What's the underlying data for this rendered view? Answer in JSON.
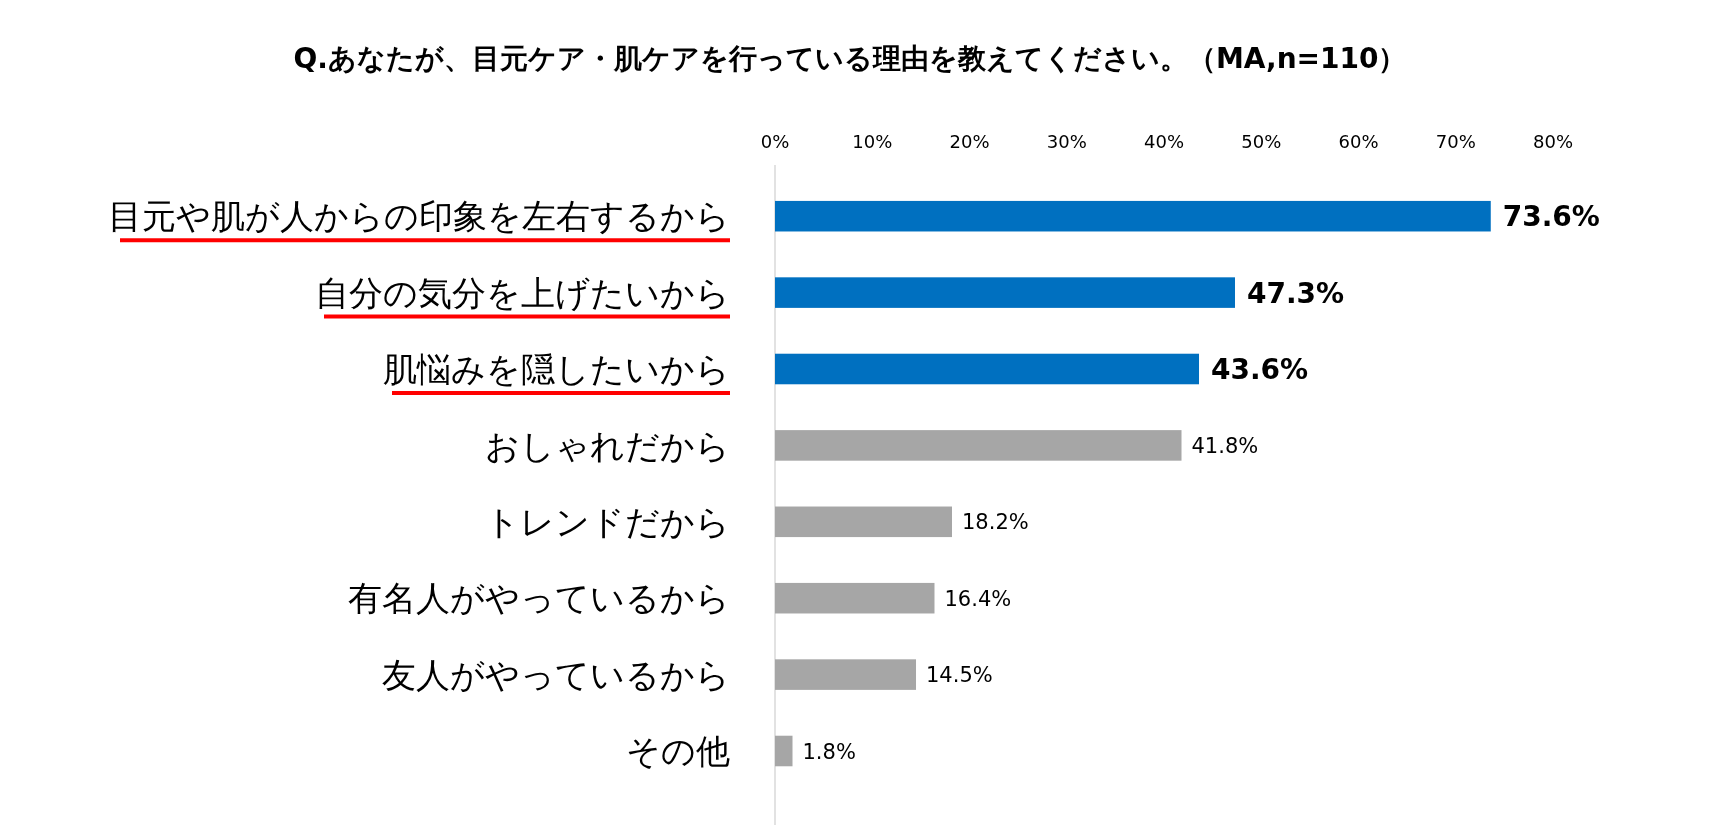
{
  "chart_data": {
    "type": "bar",
    "orientation": "horizontal",
    "title": "Q.あなたが、目元ケア・肌ケアを行っている理由を教えてください。（MA,n=110）",
    "categories": [
      "目元や肌が人からの印象を左右するから",
      "自分の気分を上げたいから",
      "肌悩みを隠したいから",
      "おしゃれだから",
      "トレンドだから",
      "有名人がやっているから",
      "友人がやっているから",
      "その他"
    ],
    "values": [
      73.6,
      47.3,
      43.6,
      41.8,
      18.2,
      16.4,
      14.5,
      1.8
    ],
    "colors": [
      "#0070c0",
      "#0070c0",
      "#0070c0",
      "#a6a6a6",
      "#a6a6a6",
      "#a6a6a6",
      "#a6a6a6",
      "#a6a6a6"
    ],
    "value_labels": [
      "73.6%",
      "47.3%",
      "43.6%",
      "41.8%",
      "18.2%",
      "16.4%",
      "14.5%",
      "1.8%"
    ],
    "xlim": [
      0,
      80
    ],
    "xticks": [
      {
        "value": 0,
        "label": "0%"
      },
      {
        "value": 10,
        "label": "10%"
      },
      {
        "value": 20,
        "label": "20%"
      },
      {
        "value": 30,
        "label": "30%"
      },
      {
        "value": 40,
        "label": "40%"
      },
      {
        "value": 50,
        "label": "50%"
      },
      {
        "value": 60,
        "label": "60%"
      },
      {
        "value": 70,
        "label": "70%"
      },
      {
        "value": 80,
        "label": "80%"
      }
    ],
    "grid": false
  }
}
